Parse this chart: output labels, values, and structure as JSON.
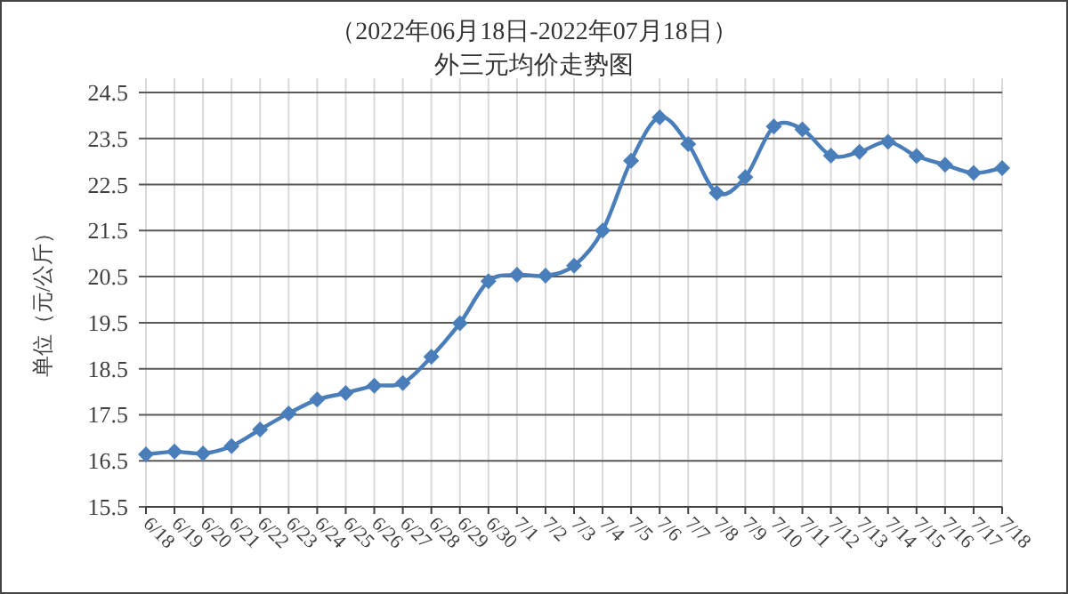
{
  "chart_data": {
    "type": "line",
    "title": "（2022年06月18日-2022年07月18日）",
    "subtitle": "外三元均价走势图",
    "ylabel": "单位（元/公斤）",
    "categories": [
      "6/18",
      "6/19",
      "6/20",
      "6/21",
      "6/22",
      "6/23",
      "6/24",
      "6/25",
      "6/26",
      "6/27",
      "6/28",
      "6/29",
      "6/30",
      "7/1",
      "7/2",
      "7/3",
      "7/4",
      "7/5",
      "7/6",
      "7/7",
      "7/8",
      "7/9",
      "7/10",
      "7/11",
      "7/12",
      "7/13",
      "7/14",
      "7/15",
      "7/16",
      "7/17",
      "7/18"
    ],
    "series": [
      {
        "color": "#4a7ebb",
        "values": [
          16.64,
          16.7,
          16.66,
          16.82,
          17.18,
          17.53,
          17.83,
          17.97,
          18.13,
          18.19,
          18.76,
          19.49,
          20.4,
          20.54,
          20.52,
          20.74,
          21.5,
          23.02,
          23.96,
          23.38,
          22.32,
          22.66,
          23.76,
          23.7,
          23.13,
          23.21,
          23.43,
          23.12,
          22.93,
          22.75,
          22.86
        ]
      }
    ],
    "ylim": [
      15.5,
      24.5
    ],
    "yticks": [
      15.5,
      16.5,
      17.5,
      18.5,
      19.5,
      20.5,
      21.5,
      22.5,
      23.5,
      24.5
    ],
    "grid": true,
    "marker": "diamond",
    "line_style": "solid"
  }
}
